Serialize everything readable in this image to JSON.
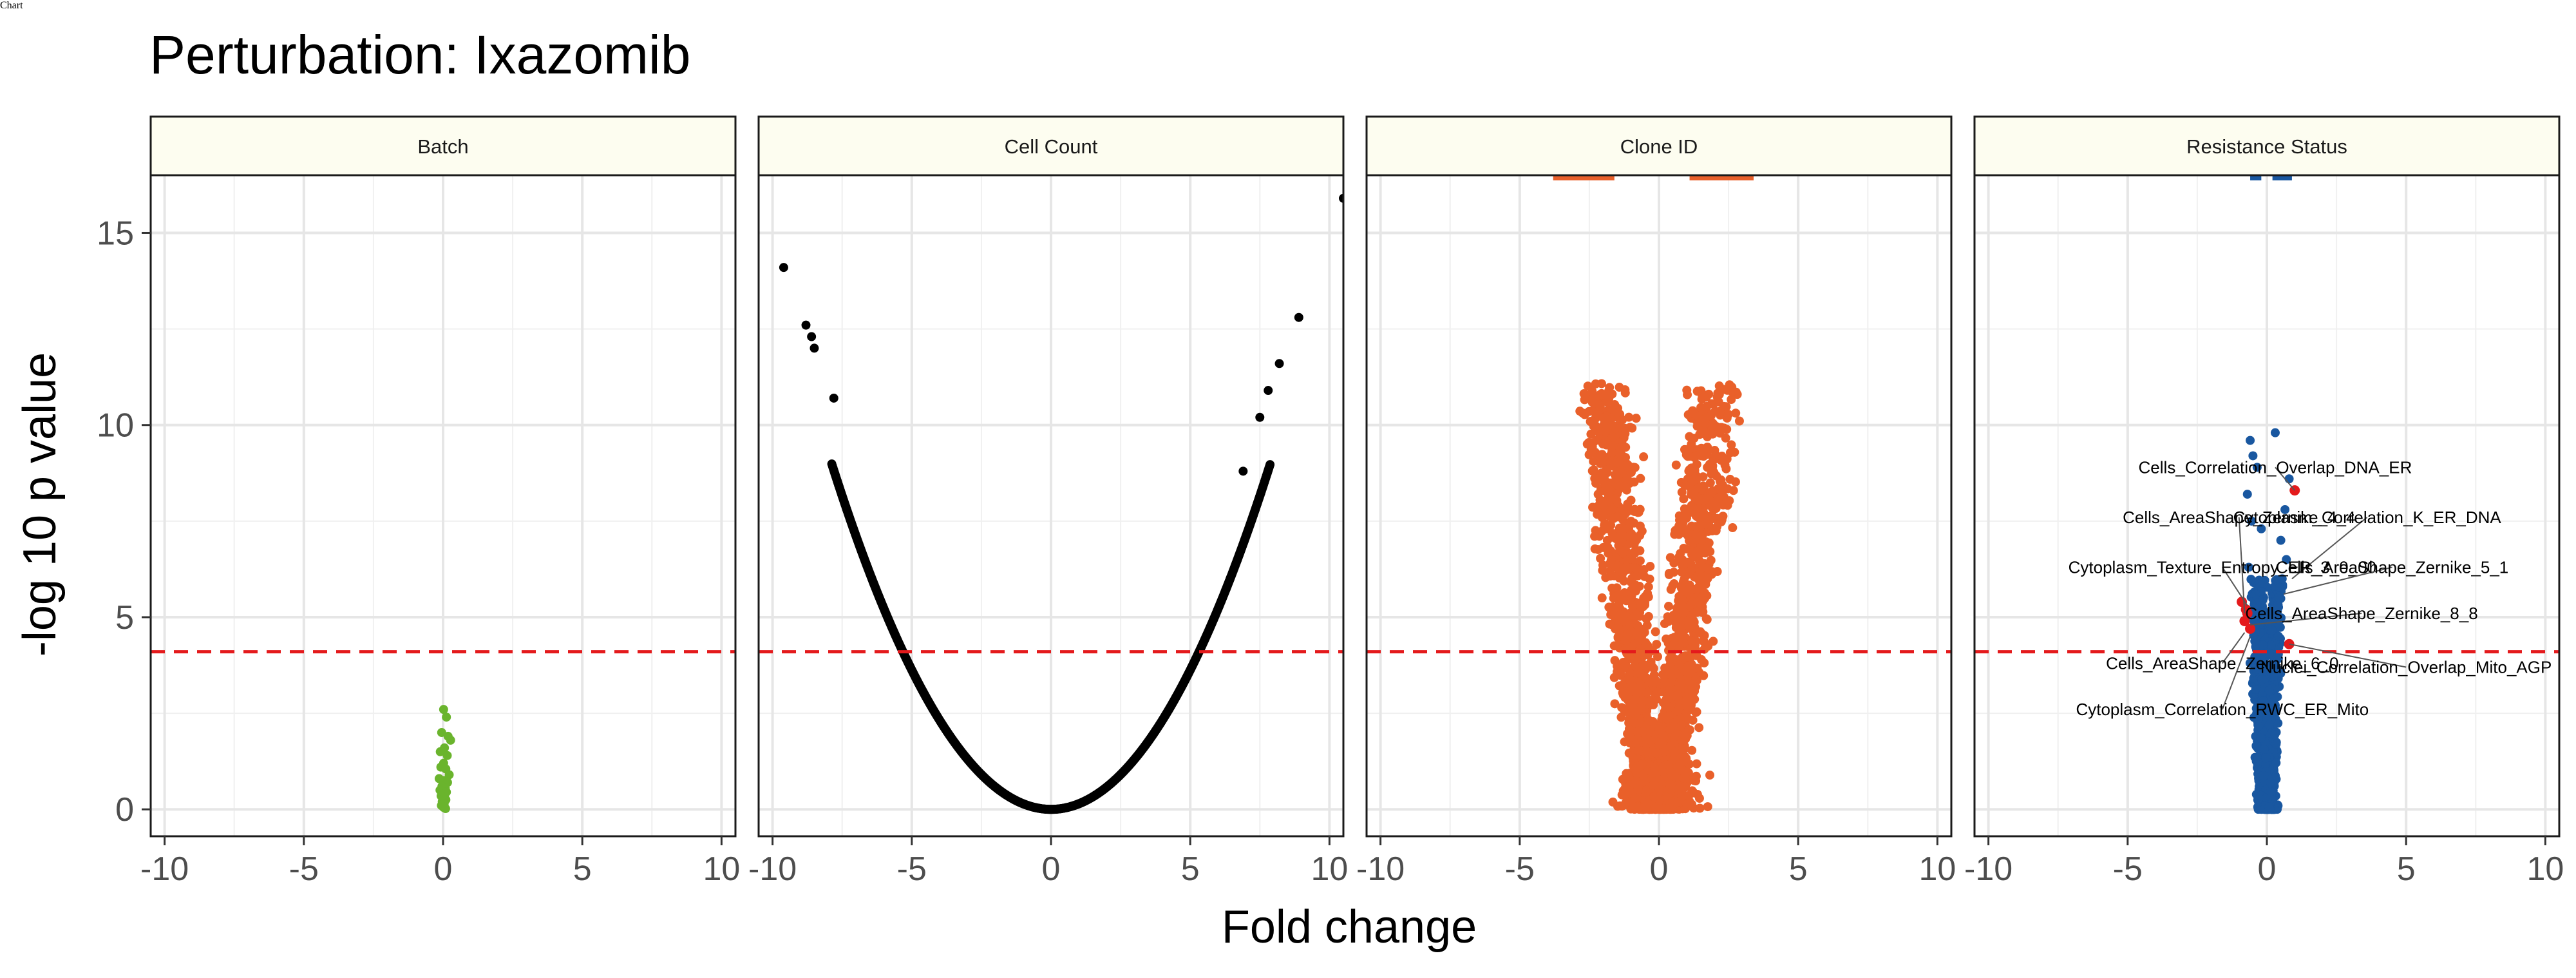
{
  "title": "Perturbation: Ixazomib",
  "xlabel": "Fold change",
  "ylabel": "-log 10 p value",
  "chart_data": {
    "type": "scatter",
    "title": "Perturbation: Ixazomib",
    "xlabel": "Fold change",
    "ylabel": "-log 10 p value",
    "xlim": [
      -10.5,
      10.5
    ],
    "ylim": [
      -0.7,
      16.5
    ],
    "x_ticks": [
      -10,
      -5,
      0,
      5,
      10
    ],
    "y_ticks": [
      0,
      5,
      10,
      15
    ],
    "threshold": 4.1,
    "threshold_color": "#e41a1c",
    "grid": true,
    "legend": "none",
    "panels": [
      {
        "name": "Batch",
        "color": "#6ab42d",
        "points": [
          [
            0.02,
            2.6
          ],
          [
            0.12,
            2.4
          ],
          [
            -0.05,
            2.0
          ],
          [
            0.18,
            1.9
          ],
          [
            0.27,
            1.8
          ],
          [
            0.05,
            1.6
          ],
          [
            -0.1,
            1.5
          ],
          [
            0.15,
            1.4
          ],
          [
            0.02,
            1.2
          ],
          [
            -0.08,
            1.1
          ],
          [
            0.1,
            1.05
          ],
          [
            0.22,
            0.9
          ],
          [
            -0.14,
            0.8
          ],
          [
            0.03,
            0.75
          ],
          [
            0.16,
            0.7
          ],
          [
            -0.04,
            0.6
          ],
          [
            0.08,
            0.55
          ],
          [
            -0.11,
            0.5
          ],
          [
            0.12,
            0.45
          ],
          [
            0.0,
            0.4
          ],
          [
            -0.07,
            0.35
          ],
          [
            0.06,
            0.3
          ],
          [
            0.1,
            0.25
          ],
          [
            -0.03,
            0.2
          ],
          [
            0.04,
            0.15
          ],
          [
            -0.06,
            0.1
          ],
          [
            0.02,
            0.05
          ],
          [
            0.09,
            0.02
          ]
        ],
        "labels": []
      },
      {
        "name": "Cell Count",
        "color": "#000000",
        "curve": {
          "a": 0.145,
          "xmin": -9.4,
          "xmax": 10.5,
          "n": 900
        },
        "points": [
          [
            -9.6,
            14.1
          ],
          [
            -8.8,
            12.6
          ],
          [
            -8.6,
            12.3
          ],
          [
            -8.5,
            12.0
          ],
          [
            -7.8,
            10.7
          ],
          [
            10.5,
            15.9
          ],
          [
            8.9,
            12.8
          ],
          [
            8.2,
            11.6
          ],
          [
            7.8,
            10.9
          ],
          [
            7.5,
            10.2
          ],
          [
            6.9,
            8.8
          ]
        ],
        "labels": []
      },
      {
        "name": "Clone ID",
        "color": "#e9602a",
        "points": [],
        "cap_segments": [
          [
            -3.8,
            -1.6
          ],
          [
            1.1,
            3.4
          ]
        ],
        "labels": []
      },
      {
        "name": "Resistance Status",
        "color": "#1957a0",
        "points": [
          [
            -0.6,
            9.6
          ],
          [
            -0.5,
            9.2
          ],
          [
            -0.35,
            8.9
          ],
          [
            0.3,
            9.8
          ],
          [
            0.8,
            8.6
          ],
          [
            0.65,
            7.8
          ],
          [
            -0.7,
            8.2
          ],
          [
            -0.55,
            7.5
          ],
          [
            0.5,
            7.0
          ],
          [
            -0.2,
            7.3
          ],
          [
            0.7,
            6.5
          ],
          [
            -0.65,
            6.3
          ],
          [
            0.55,
            6.0
          ]
        ],
        "cap_segments": [
          [
            -0.6,
            -0.2
          ],
          [
            0.2,
            0.9
          ]
        ],
        "highlight_color": "#e41a1c",
        "highlights": [
          [
            1.0,
            8.3
          ],
          [
            -0.9,
            5.4
          ],
          [
            -0.7,
            5.1
          ],
          [
            -0.8,
            4.9
          ],
          [
            -0.6,
            4.7
          ],
          [
            0.8,
            4.3
          ],
          [
            -0.75,
            5.2
          ]
        ],
        "labels": [
          {
            "text": "Cells_Correlation_Overlap_DNA_ER",
            "x": 0.3,
            "y": 8.9,
            "px": 1.0,
            "py": 8.3
          },
          {
            "text": "Cells_AreaShape_Zernike_4_4",
            "x": -1.0,
            "y": 7.6,
            "px": -0.8,
            "py": 5.1
          },
          {
            "text": "Cytoplasm_Correlation_K_ER_DNA",
            "x": 3.6,
            "y": 7.6,
            "px": 0.9,
            "py": 6.0
          },
          {
            "text": "Cytoplasm_Texture_Entropy_ER_3_0_00",
            "x": -1.6,
            "y": 6.3,
            "px": -0.7,
            "py": 5.3
          },
          {
            "text": "Cells_AreaShape_Zernike_5_1",
            "x": 4.5,
            "y": 6.3,
            "px": 0.6,
            "py": 5.6
          },
          {
            "text": "Cells_AreaShape_Zernike_8_8",
            "x": 3.4,
            "y": 5.1,
            "px": -0.6,
            "py": 4.8
          },
          {
            "text": "Cells_AreaShape_Zernike_6_0",
            "x": -1.6,
            "y": 3.8,
            "px": -0.8,
            "py": 4.6
          },
          {
            "text": "Nuclei_Correlation_Overlap_Mito_AGP",
            "x": 5.0,
            "y": 3.7,
            "px": 0.8,
            "py": 4.3
          },
          {
            "text": "Cytoplasm_Correlation_RWC_ER_Mito",
            "x": -1.6,
            "y": 2.6,
            "px": -0.6,
            "py": 4.5
          }
        ]
      }
    ]
  }
}
